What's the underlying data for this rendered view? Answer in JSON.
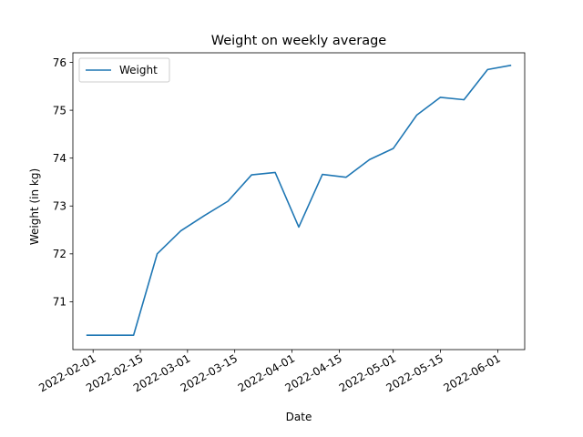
{
  "chart_data": {
    "type": "line",
    "title": "Weight on weekly average",
    "xlabel": "Date",
    "ylabel": "Weight (in kg)",
    "x_type": "date",
    "xlim": [
      "2022-01-26",
      "2022-06-09"
    ],
    "ylim": [
      70.0,
      76.2
    ],
    "x_ticks": [
      "2022-02-01",
      "2022-02-15",
      "2022-03-01",
      "2022-03-15",
      "2022-04-01",
      "2022-04-15",
      "2022-05-01",
      "2022-05-15",
      "2022-06-01"
    ],
    "y_ticks": [
      71,
      72,
      73,
      74,
      75,
      76
    ],
    "grid": false,
    "legend": {
      "position": "top-left",
      "entries": [
        "Weight"
      ]
    },
    "series": [
      {
        "name": "Weight",
        "color": "#1f77b4",
        "points": [
          {
            "x": "2022-01-30",
            "y": 70.3
          },
          {
            "x": "2022-02-06",
            "y": 70.3
          },
          {
            "x": "2022-02-13",
            "y": 70.3
          },
          {
            "x": "2022-02-20",
            "y": 72.0
          },
          {
            "x": "2022-02-27",
            "y": 72.48
          },
          {
            "x": "2022-03-06",
            "y": 72.8
          },
          {
            "x": "2022-03-13",
            "y": 73.1
          },
          {
            "x": "2022-03-20",
            "y": 73.65
          },
          {
            "x": "2022-03-27",
            "y": 73.7
          },
          {
            "x": "2022-04-03",
            "y": 72.56
          },
          {
            "x": "2022-04-10",
            "y": 73.66
          },
          {
            "x": "2022-04-17",
            "y": 73.6
          },
          {
            "x": "2022-04-24",
            "y": 73.97
          },
          {
            "x": "2022-05-01",
            "y": 74.2
          },
          {
            "x": "2022-05-08",
            "y": 74.9
          },
          {
            "x": "2022-05-15",
            "y": 75.27
          },
          {
            "x": "2022-05-22",
            "y": 75.22
          },
          {
            "x": "2022-05-29",
            "y": 75.85
          },
          {
            "x": "2022-06-05",
            "y": 75.94
          }
        ]
      }
    ]
  }
}
